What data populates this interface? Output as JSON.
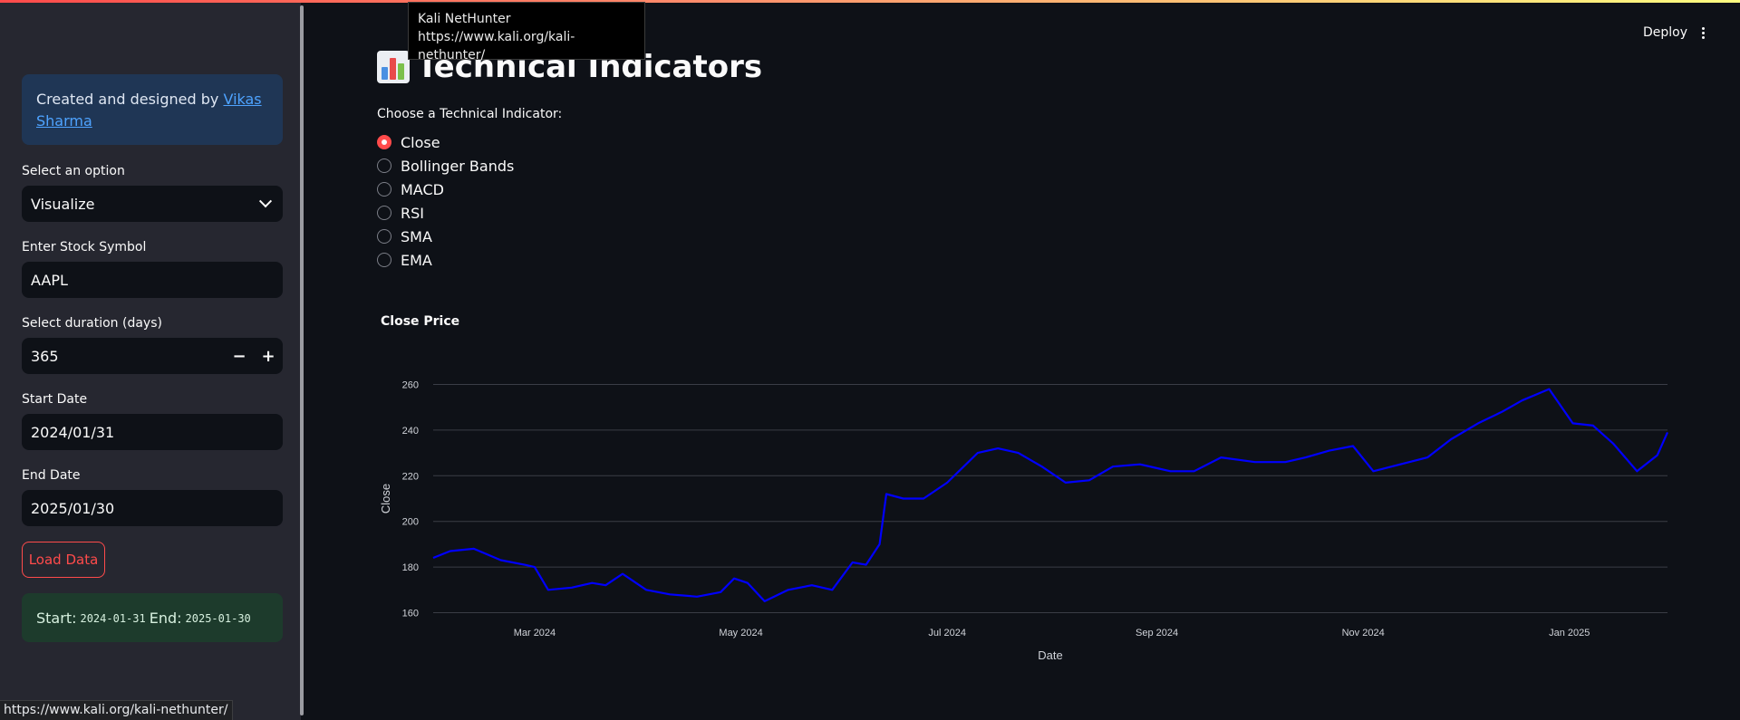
{
  "tooltip": {
    "title": "Kali NetHunter",
    "url": "https://www.kali.org/kali-nethunter/"
  },
  "status_url": "https://www.kali.org/kali-nethunter/",
  "header": {
    "deploy_label": "Deploy",
    "menu_icon": "kebab-icon"
  },
  "sidebar": {
    "info": {
      "prefix": "Created and designed by ",
      "link_text": "Vikas Sharma"
    },
    "option": {
      "label": "Select an option",
      "value": "Visualize"
    },
    "symbol": {
      "label": "Enter Stock Symbol",
      "value": "AAPL"
    },
    "duration": {
      "label": "Select duration (days)",
      "value": "365",
      "minus": "−",
      "plus": "+"
    },
    "start": {
      "label": "Start Date",
      "value": "2024/01/31"
    },
    "end": {
      "label": "End Date",
      "value": "2025/01/30"
    },
    "load_label": "Load Data",
    "success": {
      "start_label": "Start:",
      "start": "2024-01-31",
      "end_label": "End:",
      "end": "2025-01-30"
    }
  },
  "main": {
    "title": "Technical Indicators",
    "title_icon": "bar-chart-icon",
    "radio_label": "Choose a Technical Indicator:",
    "options": [
      "Close",
      "Bollinger Bands",
      "MACD",
      "RSI",
      "SMA",
      "EMA"
    ],
    "selected": "Close",
    "chart_title": "Close Price"
  },
  "chart_data": {
    "type": "line",
    "title": "Close Price",
    "xlabel": "Date",
    "ylabel": "Close",
    "ylim": [
      159,
      261
    ],
    "xlim": [
      "2024-01-31",
      "2025-01-30"
    ],
    "yticks": [
      160,
      180,
      200,
      220,
      240,
      260
    ],
    "xticks": [
      {
        "date": "2024-03-01",
        "label": "Mar 2024"
      },
      {
        "date": "2024-05-01",
        "label": "May 2024"
      },
      {
        "date": "2024-07-01",
        "label": "Jul 2024"
      },
      {
        "date": "2024-09-01",
        "label": "Sep 2024"
      },
      {
        "date": "2024-11-01",
        "label": "Nov 2024"
      },
      {
        "date": "2025-01-01",
        "label": "Jan 2025"
      }
    ],
    "color": "#0000ff",
    "grid": true,
    "series": [
      {
        "points": [
          [
            "2024-01-31",
            184
          ],
          [
            "2024-02-05",
            187
          ],
          [
            "2024-02-12",
            188
          ],
          [
            "2024-02-20",
            183
          ],
          [
            "2024-02-27",
            181
          ],
          [
            "2024-03-01",
            180
          ],
          [
            "2024-03-05",
            170
          ],
          [
            "2024-03-12",
            171
          ],
          [
            "2024-03-18",
            173
          ],
          [
            "2024-03-22",
            172
          ],
          [
            "2024-03-27",
            177
          ],
          [
            "2024-04-03",
            170
          ],
          [
            "2024-04-10",
            168
          ],
          [
            "2024-04-18",
            167
          ],
          [
            "2024-04-25",
            169
          ],
          [
            "2024-04-29",
            175
          ],
          [
            "2024-05-03",
            173
          ],
          [
            "2024-05-08",
            165
          ],
          [
            "2024-05-15",
            170
          ],
          [
            "2024-05-22",
            172
          ],
          [
            "2024-05-28",
            170
          ],
          [
            "2024-06-03",
            182
          ],
          [
            "2024-06-07",
            181
          ],
          [
            "2024-06-11",
            190
          ],
          [
            "2024-06-13",
            212
          ],
          [
            "2024-06-18",
            210
          ],
          [
            "2024-06-24",
            210
          ],
          [
            "2024-07-01",
            217
          ],
          [
            "2024-07-10",
            230
          ],
          [
            "2024-07-16",
            232
          ],
          [
            "2024-07-22",
            230
          ],
          [
            "2024-07-29",
            224
          ],
          [
            "2024-08-05",
            217
          ],
          [
            "2024-08-12",
            218
          ],
          [
            "2024-08-19",
            224
          ],
          [
            "2024-08-27",
            225
          ],
          [
            "2024-09-05",
            222
          ],
          [
            "2024-09-12",
            222
          ],
          [
            "2024-09-20",
            228
          ],
          [
            "2024-09-30",
            226
          ],
          [
            "2024-10-09",
            226
          ],
          [
            "2024-10-15",
            228
          ],
          [
            "2024-10-22",
            231
          ],
          [
            "2024-10-29",
            233
          ],
          [
            "2024-11-04",
            222
          ],
          [
            "2024-11-12",
            225
          ],
          [
            "2024-11-20",
            228
          ],
          [
            "2024-11-27",
            236
          ],
          [
            "2024-12-05",
            243
          ],
          [
            "2024-12-12",
            248
          ],
          [
            "2024-12-18",
            253
          ],
          [
            "2024-12-26",
            258
          ],
          [
            "2025-01-02",
            243
          ],
          [
            "2025-01-08",
            242
          ],
          [
            "2025-01-14",
            234
          ],
          [
            "2025-01-21",
            222
          ],
          [
            "2025-01-27",
            229
          ],
          [
            "2025-01-30",
            239
          ]
        ]
      }
    ]
  }
}
